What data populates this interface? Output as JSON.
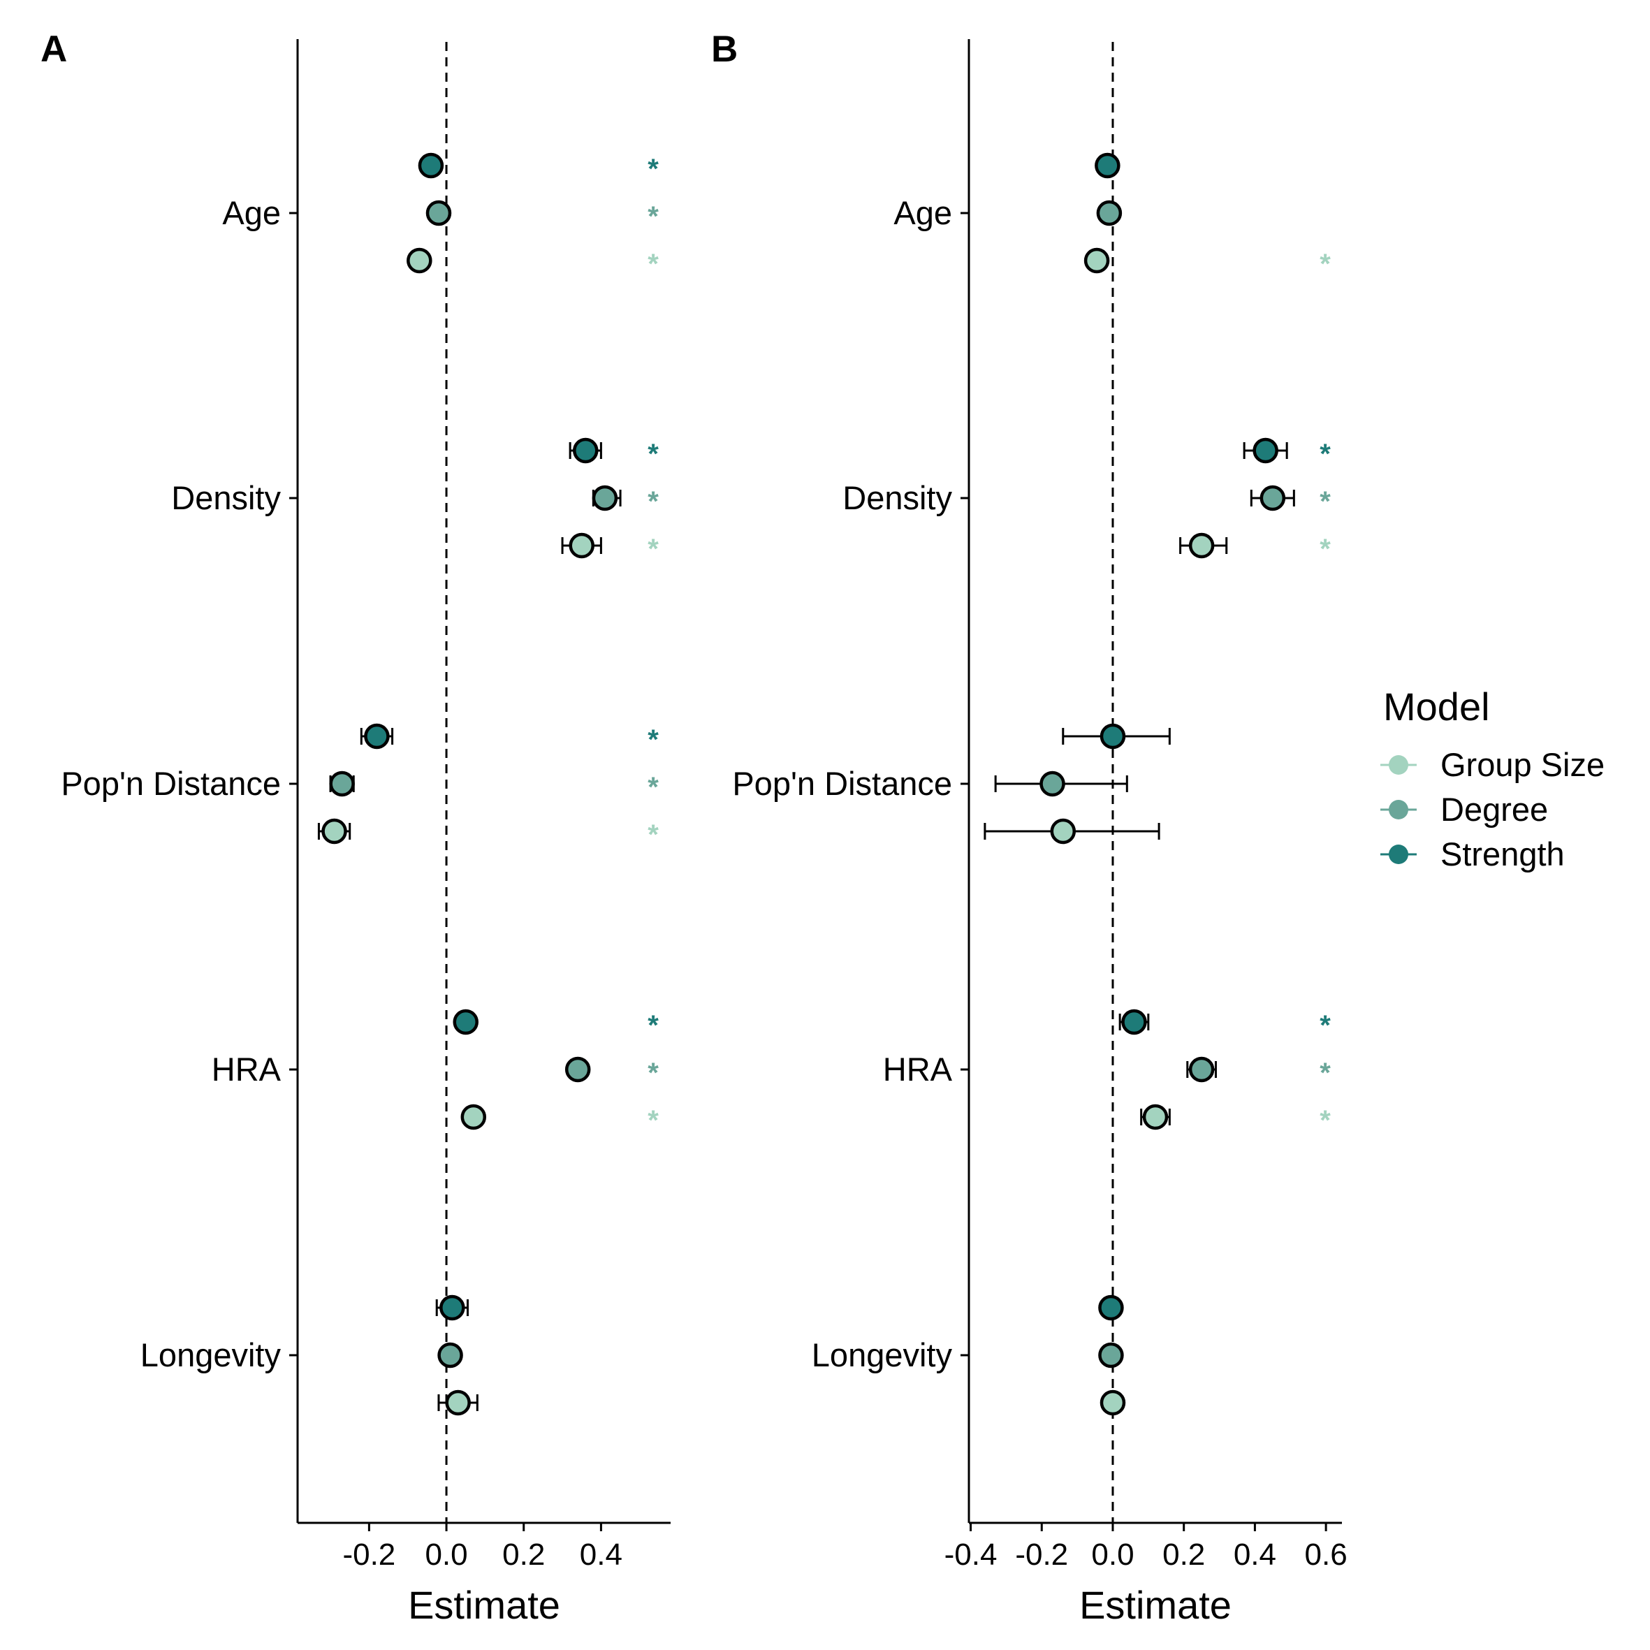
{
  "chart_data": [
    {
      "type": "scatter",
      "panel": "A",
      "categories": [
        "Age",
        "Density",
        "Pop'n Distance",
        "HRA",
        "Longevity"
      ],
      "xlabel": "Estimate",
      "ylabel": "",
      "xlim": [
        -0.385,
        0.58
      ],
      "xticks": [
        "-0.2",
        "0.0",
        "0.2",
        "0.4"
      ],
      "reference_line": 0,
      "series": [
        {
          "name": "Strength",
          "values": [
            -0.04,
            0.36,
            -0.18,
            0.05,
            0.015
          ],
          "ci_low": [
            -0.055,
            0.32,
            -0.22,
            0.03,
            -0.025
          ],
          "ci_high": [
            -0.025,
            0.4,
            -0.14,
            0.07,
            0.055
          ],
          "significant": [
            true,
            true,
            true,
            true,
            false
          ]
        },
        {
          "name": "Degree",
          "values": [
            -0.02,
            0.41,
            -0.27,
            0.34,
            0.01
          ],
          "ci_low": [
            -0.03,
            0.38,
            -0.3,
            0.33,
            -0.005
          ],
          "ci_high": [
            -0.01,
            0.45,
            -0.24,
            0.35,
            0.025
          ],
          "significant": [
            true,
            true,
            true,
            true,
            false
          ]
        },
        {
          "name": "Group Size",
          "values": [
            -0.07,
            0.35,
            -0.29,
            0.07,
            0.03
          ],
          "ci_low": [
            -0.08,
            0.3,
            -0.33,
            0.05,
            -0.02
          ],
          "ci_high": [
            -0.06,
            0.4,
            -0.25,
            0.09,
            0.08
          ],
          "significant": [
            true,
            true,
            true,
            true,
            false
          ]
        }
      ]
    },
    {
      "type": "scatter",
      "panel": "B",
      "categories": [
        "Age",
        "Density",
        "Pop'n Distance",
        "HRA",
        "Longevity"
      ],
      "xlabel": "Estimate",
      "ylabel": "",
      "xlim": [
        -0.405,
        0.645
      ],
      "xticks": [
        "-0.4",
        "-0.2",
        "0.0",
        "0.2",
        "0.4",
        "0.6"
      ],
      "reference_line": 0,
      "series": [
        {
          "name": "Strength",
          "values": [
            -0.015,
            0.43,
            0.0,
            0.06,
            -0.005
          ],
          "ci_low": [
            -0.025,
            0.37,
            -0.14,
            0.02,
            -0.012
          ],
          "ci_high": [
            -0.005,
            0.49,
            0.16,
            0.1,
            0.002
          ],
          "significant": [
            false,
            true,
            false,
            true,
            false
          ]
        },
        {
          "name": "Degree",
          "values": [
            -0.01,
            0.45,
            -0.17,
            0.25,
            -0.005
          ],
          "ci_low": [
            -0.018,
            0.39,
            -0.33,
            0.21,
            -0.012
          ],
          "ci_high": [
            -0.002,
            0.51,
            0.04,
            0.29,
            0.002
          ],
          "significant": [
            false,
            true,
            false,
            true,
            false
          ]
        },
        {
          "name": "Group Size",
          "values": [
            -0.045,
            0.25,
            -0.14,
            0.12,
            0.0
          ],
          "ci_low": [
            -0.055,
            0.19,
            -0.36,
            0.08,
            -0.008
          ],
          "ci_high": [
            -0.035,
            0.32,
            0.13,
            0.16,
            0.008
          ],
          "significant": [
            true,
            true,
            false,
            true,
            false
          ]
        }
      ]
    }
  ],
  "legend": {
    "title": "Model",
    "placement": "right",
    "entries": [
      {
        "name": "Group Size",
        "color": "#a3d3bf"
      },
      {
        "name": "Degree",
        "color": "#6aa699"
      },
      {
        "name": "Strength",
        "color": "#1e7b78"
      }
    ]
  },
  "significance_marker": "*"
}
